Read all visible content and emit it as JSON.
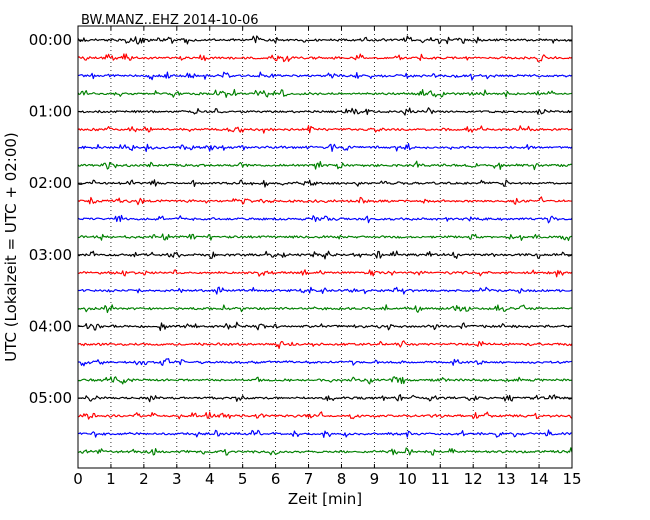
{
  "chart_data": {
    "type": "line",
    "title": "BW.MANZ..EHZ 2014-10-06",
    "xlabel": "Zeit  [min]",
    "ylabel": "UTC (Lokalzeit = UTC + 02:00)",
    "xlim": [
      0,
      15
    ],
    "xticks": [
      0,
      1,
      2,
      3,
      4,
      5,
      6,
      7,
      8,
      9,
      10,
      11,
      12,
      13,
      14,
      15
    ],
    "row_minutes": 15,
    "row_count": 24,
    "ytick_labels": [
      "00:00",
      "01:00",
      "02:00",
      "03:00",
      "04:00",
      "05:00"
    ],
    "ytick_rows": [
      0,
      4,
      8,
      12,
      16,
      20
    ],
    "vertical_grid": true,
    "grid_style": "dotted",
    "trace_colors": [
      "#000000",
      "#ff0000",
      "#0000ff",
      "#008000"
    ]
  }
}
